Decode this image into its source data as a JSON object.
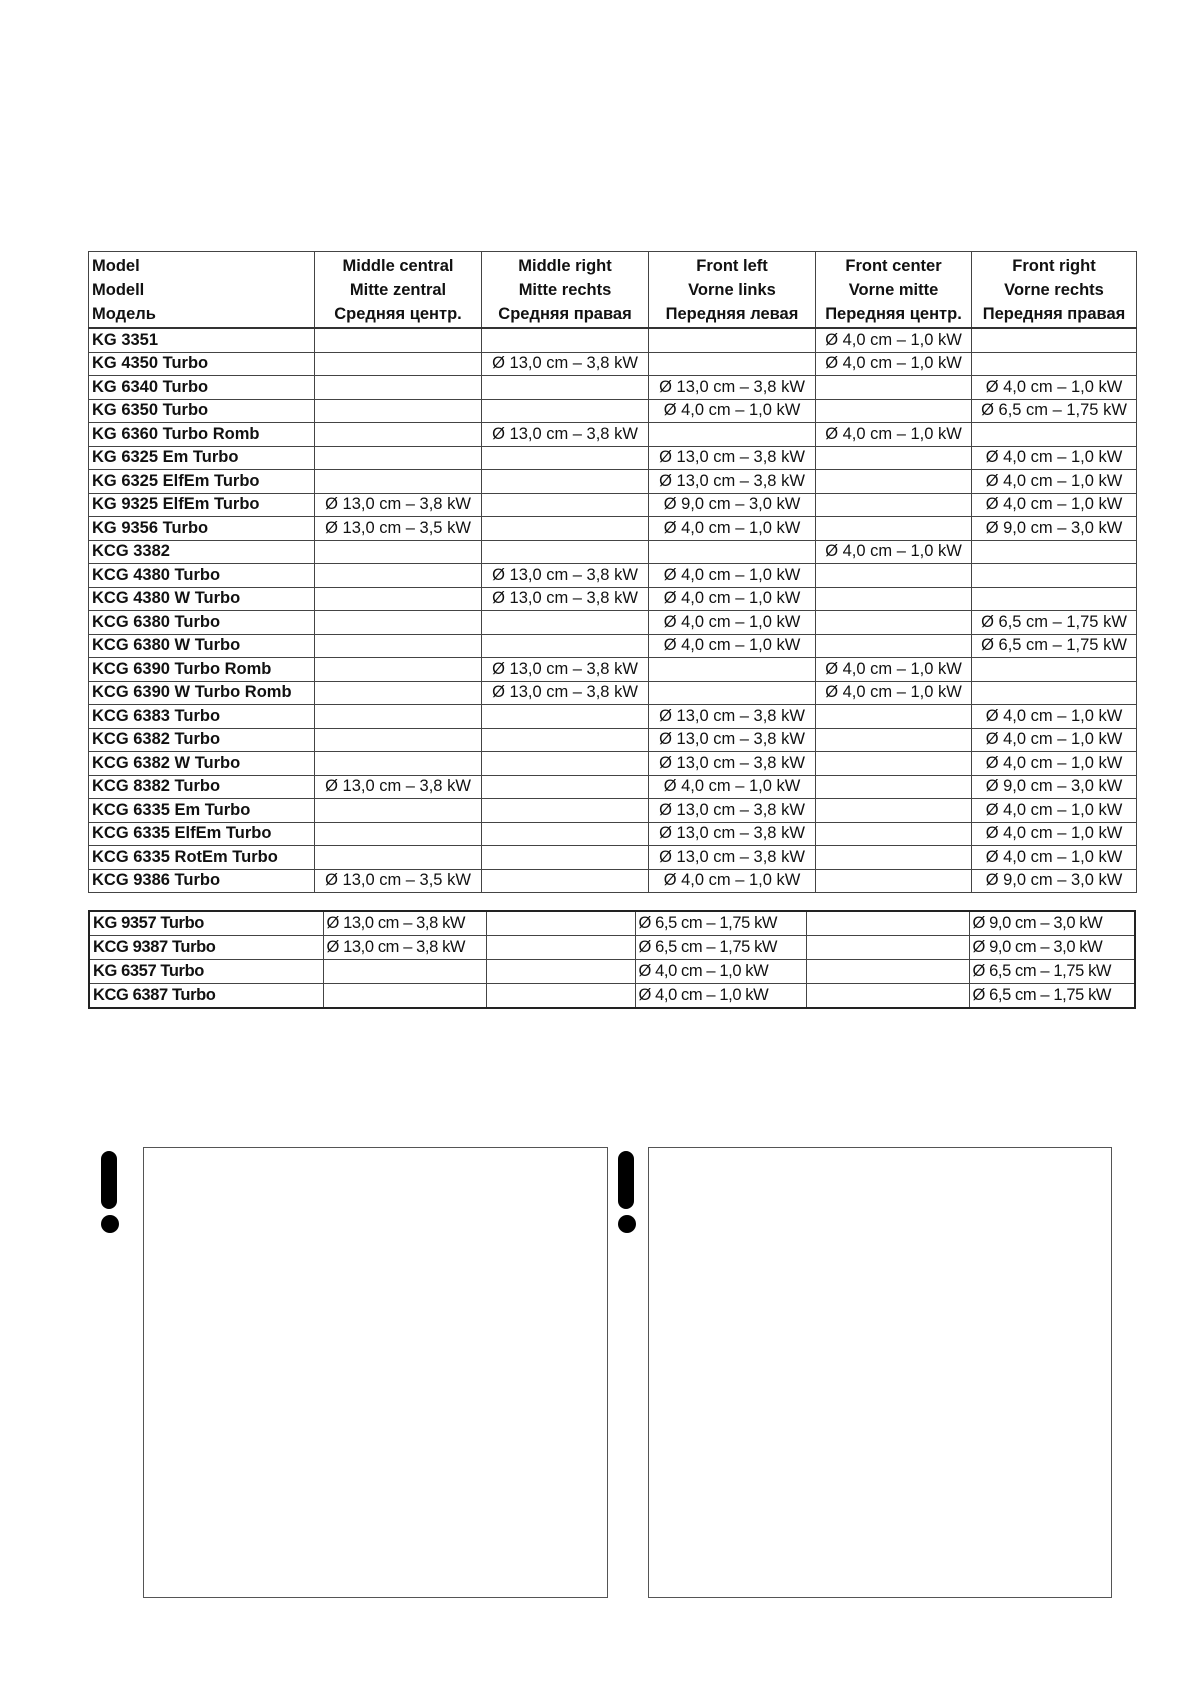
{
  "main_table": {
    "headers": [
      [
        "Model",
        "Modell",
        "Модель"
      ],
      [
        "Middle central",
        "Mitte zentral",
        "Средняя центр."
      ],
      [
        "Middle right",
        "Mitte rechts",
        "Средняя правая"
      ],
      [
        "Front left",
        "Vorne links",
        "Передняя левая"
      ],
      [
        "Front center",
        "Vorne mitte",
        "Передняя центр."
      ],
      [
        "Front right",
        "Vorne rechts",
        "Передняя правая"
      ]
    ],
    "rows": [
      [
        "KG 3351",
        "",
        "",
        "",
        "Ø 4,0 cm – 1,0 kW",
        ""
      ],
      [
        "KG 4350 Turbo",
        "",
        "Ø 13,0 cm – 3,8 kW",
        "",
        "Ø 4,0 cm – 1,0 kW",
        ""
      ],
      [
        "KG 6340 Turbo",
        "",
        "",
        "Ø 13,0 cm – 3,8 kW",
        "",
        "Ø 4,0 cm – 1,0 kW"
      ],
      [
        "KG 6350 Turbo",
        "",
        "",
        "Ø 4,0 cm – 1,0 kW",
        "",
        "Ø 6,5 cm – 1,75 kW"
      ],
      [
        "KG 6360 Turbo Romb",
        "",
        "Ø 13,0 cm – 3,8 kW",
        "",
        "Ø 4,0 cm – 1,0 kW",
        ""
      ],
      [
        "KG 6325 Em Turbo",
        "",
        "",
        "Ø 13,0 cm – 3,8 kW",
        "",
        "Ø 4,0 cm – 1,0 kW"
      ],
      [
        "KG 6325 ElfEm Turbo",
        "",
        "",
        "Ø 13,0 cm – 3,8 kW",
        "",
        "Ø 4,0 cm – 1,0 kW"
      ],
      [
        "KG 9325 ElfEm Turbo",
        "Ø 13,0 cm – 3,8 kW",
        "",
        "Ø 9,0 cm – 3,0 kW",
        "",
        "Ø 4,0 cm – 1,0 kW"
      ],
      [
        "KG 9356 Turbo",
        "Ø 13,0 cm – 3,5 kW",
        "",
        "Ø 4,0 cm – 1,0 kW",
        "",
        "Ø 9,0 cm – 3,0 kW"
      ],
      [
        "KCG 3382",
        "",
        "",
        "",
        "Ø 4,0 cm – 1,0 kW",
        ""
      ],
      [
        "KCG 4380 Turbo",
        "",
        "Ø 13,0 cm – 3,8 kW",
        "Ø 4,0 cm – 1,0 kW",
        "",
        ""
      ],
      [
        "KCG 4380 W Turbo",
        "",
        "Ø 13,0 cm – 3,8 kW",
        "Ø 4,0 cm – 1,0 kW",
        "",
        ""
      ],
      [
        "KCG 6380 Turbo",
        "",
        "",
        "Ø 4,0 cm – 1,0 kW",
        "",
        "Ø 6,5 cm – 1,75 kW"
      ],
      [
        "KCG 6380 W Turbo",
        "",
        "",
        "Ø 4,0 cm – 1,0 kW",
        "",
        "Ø 6,5 cm – 1,75 kW"
      ],
      [
        "KCG 6390 Turbo Romb",
        "",
        "Ø 13,0 cm – 3,8 kW",
        "",
        "Ø 4,0 cm – 1,0 kW",
        ""
      ],
      [
        "KCG 6390 W Turbo Romb",
        "",
        "Ø 13,0 cm – 3,8 kW",
        "",
        "Ø 4,0 cm – 1,0 kW",
        ""
      ],
      [
        "KCG 6383 Turbo",
        "",
        "",
        "Ø 13,0 cm – 3,8 kW",
        "",
        "Ø 4,0 cm – 1,0 kW"
      ],
      [
        "KCG 6382 Turbo",
        "",
        "",
        "Ø 13,0 cm – 3,8 kW",
        "",
        "Ø 4,0 cm – 1,0 kW"
      ],
      [
        "KCG 6382 W Turbo",
        "",
        "",
        "Ø 13,0 cm – 3,8 kW",
        "",
        "Ø 4,0 cm – 1,0 kW"
      ],
      [
        "KCG 8382 Turbo",
        "Ø 13,0 cm – 3,8 kW",
        "",
        "Ø 4,0 cm – 1,0 kW",
        "",
        "Ø 9,0 cm – 3,0 kW"
      ],
      [
        "KCG 6335 Em Turbo",
        "",
        "",
        "Ø 13,0 cm – 3,8 kW",
        "",
        "Ø 4,0 cm – 1,0 kW"
      ],
      [
        "KCG 6335 ElfEm Turbo",
        "",
        "",
        "Ø 13,0 cm – 3,8 kW",
        "",
        "Ø 4,0 cm – 1,0 kW"
      ],
      [
        "KCG 6335 RotEm Turbo",
        "",
        "",
        "Ø 13,0 cm – 3,8 kW",
        "",
        "Ø 4,0 cm – 1,0 kW"
      ],
      [
        "KCG 9386 Turbo",
        "Ø 13,0 cm – 3,5 kW",
        "",
        "Ø 4,0 cm – 1,0 kW",
        "",
        "Ø 9,0 cm – 3,0 kW"
      ]
    ]
  },
  "second_table": {
    "rows": [
      [
        "KG 9357 Turbo",
        "Ø 13,0 cm – 3,8 kW",
        "",
        "Ø 6,5 cm – 1,75 kW",
        "",
        "Ø 9,0 cm – 3,0 kW"
      ],
      [
        "KCG 9387 Turbo",
        "Ø 13,0 cm – 3,8 kW",
        "",
        "Ø 6,5 cm – 1,75 kW",
        "",
        "Ø 9,0 cm – 3,0 kW"
      ],
      [
        "KG 6357 Turbo",
        "",
        "",
        "Ø 4,0 cm – 1,0 kW",
        "",
        "Ø 6,5 cm – 1,75 kW"
      ],
      [
        "KCG 6387 Turbo",
        "",
        "",
        "Ø 4,0 cm – 1,0 kW",
        "",
        "Ø 6,5 cm – 1,75 kW"
      ]
    ]
  },
  "notes": [
    {
      "icon": "exclamation-icon"
    },
    {
      "icon": "exclamation-icon"
    }
  ]
}
